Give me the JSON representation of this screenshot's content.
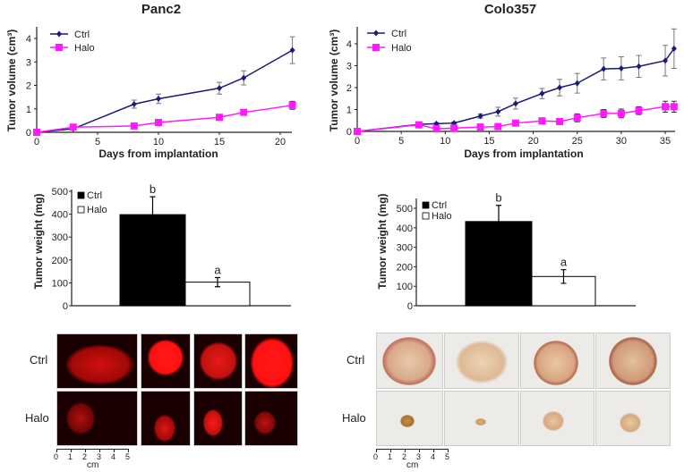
{
  "colors": {
    "ctrl_line": "#1a1a7a",
    "halo_line": "#ff1aff",
    "axis": "#222222",
    "error": "#777777",
    "bar_ctrl": "#000000",
    "bar_halo": "#ffffff"
  },
  "chart_data": [
    {
      "type": "line",
      "title": "Panc2",
      "xlabel": "Days from implantation",
      "ylabel": "Tumor volume (cm³)",
      "xlim": [
        0,
        21
      ],
      "ylim": [
        0,
        4.4
      ],
      "xticks": [
        "0",
        "5",
        "10",
        "15",
        "20"
      ],
      "yticks": [
        "0",
        "1",
        "2",
        "3",
        "4"
      ],
      "legend_position": "top-left",
      "series": [
        {
          "name": "Ctrl",
          "marker": "diamond",
          "x": [
            0,
            3,
            8,
            10,
            15,
            17,
            21
          ],
          "y": [
            0,
            0.15,
            1.2,
            1.43,
            1.88,
            2.32,
            3.5
          ],
          "err": [
            0,
            0,
            0.17,
            0.2,
            0.25,
            0.3,
            0.57
          ]
        },
        {
          "name": "Halo",
          "marker": "square",
          "x": [
            0,
            3,
            8,
            10,
            15,
            17,
            21
          ],
          "y": [
            0,
            0.22,
            0.27,
            0.42,
            0.64,
            0.85,
            1.15
          ],
          "err": [
            0,
            0.02,
            0.03,
            0.03,
            0.1,
            0.12,
            0.17
          ]
        }
      ]
    },
    {
      "type": "line",
      "title": "Colo357",
      "xlabel": "Days from implantation",
      "ylabel": "Tumor volume (cm³)",
      "xlim": [
        0,
        36
      ],
      "ylim": [
        0,
        4.8
      ],
      "xticks": [
        "0",
        "5",
        "10",
        "15",
        "20",
        "25",
        "30",
        "35"
      ],
      "yticks": [
        "0",
        "1",
        "2",
        "3",
        "4"
      ],
      "legend_position": "top-left",
      "series": [
        {
          "name": "Ctrl",
          "marker": "diamond",
          "x": [
            0,
            7,
            9,
            11,
            14,
            16,
            18,
            21,
            23,
            25,
            28,
            30,
            32,
            35,
            36
          ],
          "y": [
            0,
            0.32,
            0.35,
            0.38,
            0.7,
            0.9,
            1.27,
            1.73,
            2.0,
            2.2,
            2.85,
            2.88,
            2.97,
            3.23,
            3.78
          ],
          "err": [
            0,
            0,
            0.05,
            0.05,
            0.1,
            0.2,
            0.25,
            0.23,
            0.38,
            0.45,
            0.5,
            0.53,
            0.5,
            0.7,
            0.9
          ]
        },
        {
          "name": "Halo",
          "marker": "square",
          "x": [
            0,
            7,
            9,
            11,
            14,
            16,
            18,
            21,
            23,
            25,
            28,
            30,
            32,
            35,
            36
          ],
          "y": [
            0,
            0.3,
            0.12,
            0.15,
            0.2,
            0.22,
            0.38,
            0.48,
            0.45,
            0.62,
            0.82,
            0.82,
            0.95,
            1.13,
            1.13
          ],
          "err": [
            0,
            0.03,
            0.03,
            0.03,
            0.03,
            0.03,
            0.05,
            0.05,
            0.08,
            0.18,
            0.18,
            0.2,
            0.18,
            0.25,
            0.25
          ]
        }
      ]
    },
    {
      "type": "bar",
      "title": "",
      "xlabel": "",
      "ylabel": "Tumor weight (mg)",
      "ylim": [
        0,
        500
      ],
      "yticks": [
        "0",
        "100",
        "200",
        "300",
        "400",
        "500"
      ],
      "legend_position": "top-left",
      "categories": [
        "Ctrl",
        "Halo"
      ],
      "values": [
        398,
        103
      ],
      "err": [
        78,
        20
      ],
      "annotations": [
        "b",
        "a"
      ]
    },
    {
      "type": "bar",
      "title": "",
      "xlabel": "",
      "ylabel": "Tumor weight (mg)",
      "ylim": [
        0,
        500
      ],
      "yticks": [
        "0",
        "100",
        "200",
        "300",
        "400",
        "500"
      ],
      "legend_position": "top-left",
      "categories": [
        "Ctrl",
        "Halo"
      ],
      "values": [
        432,
        150
      ],
      "err": [
        83,
        35
      ],
      "annotations": [
        "b",
        "a"
      ]
    }
  ],
  "photos": {
    "panc2": {
      "rows": [
        "Ctrl",
        "Halo"
      ],
      "scale_ticks": [
        "0",
        "1",
        "2",
        "3",
        "4",
        "5"
      ],
      "scale_unit": "cm"
    },
    "colo357": {
      "rows": [
        "Ctrl",
        "Halo"
      ],
      "scale_ticks": [
        "0",
        "1",
        "2",
        "3",
        "4",
        "5"
      ],
      "scale_unit": "cm"
    }
  }
}
